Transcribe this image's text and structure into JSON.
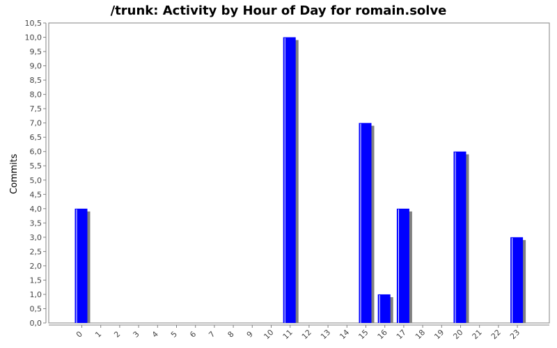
{
  "chart_data": {
    "type": "bar",
    "title": "/trunk: Activity by Hour of Day for romain.solve",
    "xlabel": "",
    "ylabel": "Commits",
    "categories": [
      "0",
      "1",
      "2",
      "3",
      "4",
      "5",
      "6",
      "7",
      "8",
      "9",
      "10",
      "11",
      "12",
      "13",
      "14",
      "15",
      "16",
      "17",
      "18",
      "19",
      "20",
      "21",
      "22",
      "23"
    ],
    "values": [
      4,
      0,
      0,
      0,
      0,
      0,
      0,
      0,
      0,
      0,
      0,
      10,
      0,
      0,
      0,
      7,
      1,
      4,
      0,
      0,
      6,
      0,
      0,
      3
    ],
    "y_ticks": [
      "0,0",
      "0,5",
      "1,0",
      "1,5",
      "2,0",
      "2,5",
      "3,0",
      "3,5",
      "4,0",
      "4,5",
      "5,0",
      "5,5",
      "6,0",
      "6,5",
      "7,0",
      "7,5",
      "8,0",
      "8,5",
      "9,0",
      "9,5",
      "10,0",
      "10,5"
    ],
    "ylim": [
      0,
      10.5
    ],
    "grid": false,
    "legend": "none",
    "colors": {
      "bar": "#0000ff",
      "bar_shadow": "#808080",
      "bar_highlight": "#ffffff",
      "axis": "#808080",
      "background": "#ffffff"
    }
  }
}
